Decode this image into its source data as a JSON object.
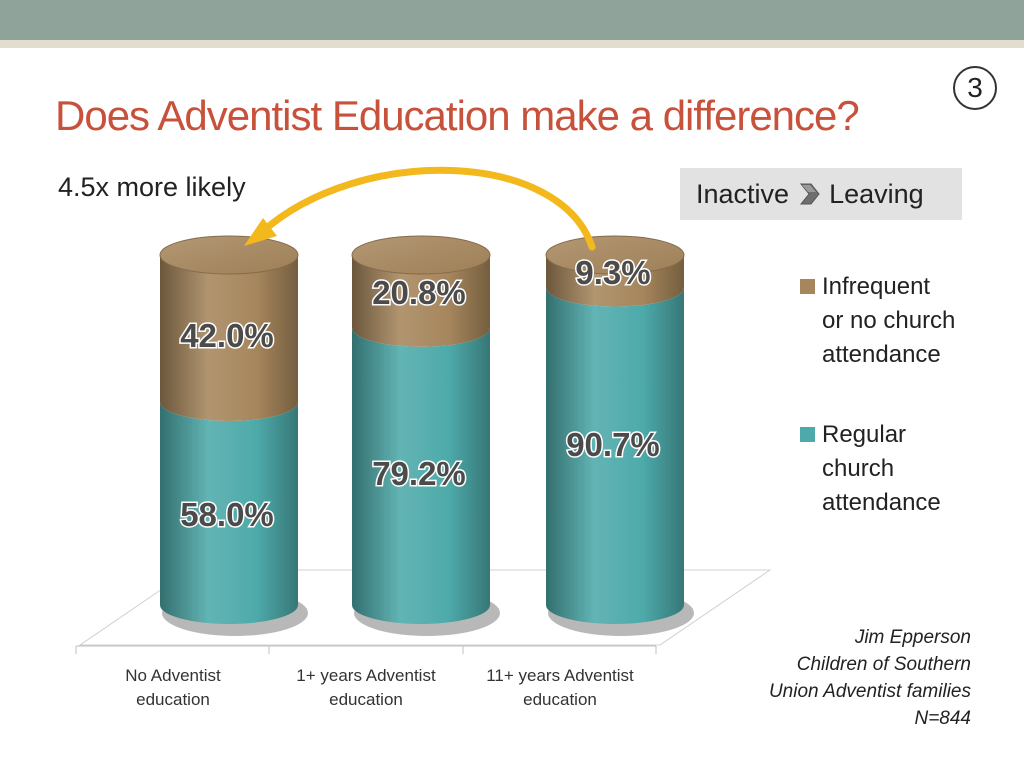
{
  "slide": {
    "title": "Does Adventist Education make a difference?",
    "number": "3",
    "subtitle": "4.5x more likely",
    "tag": {
      "left": "Inactive",
      "right": "Leaving"
    }
  },
  "source": {
    "lines": [
      "Jim Epperson",
      "Children of Southern",
      "Union Adventist families",
      "N=844"
    ]
  },
  "colors": {
    "title": "#c8513b",
    "regular": "#4eaaaa",
    "infrequent": "#a6865c",
    "arrow": "#f2b81c",
    "top_bar": "#8fa39a"
  },
  "chart_data": {
    "type": "bar",
    "stacked": true,
    "categories": [
      "No Adventist education",
      "1+ years Adventist education",
      "11+ years Adventist education"
    ],
    "category_lines": [
      [
        "No Adventist",
        "education"
      ],
      [
        "1+ years Adventist",
        "education"
      ],
      [
        "11+ years Adventist",
        "education"
      ]
    ],
    "series": [
      {
        "name": "Regular church attendance",
        "legend_lines": [
          "Regular",
          "church",
          "attendance"
        ],
        "values": [
          58.0,
          79.2,
          90.7
        ],
        "labels": [
          "58.0%",
          "79.2%",
          "90.7%"
        ],
        "color": "#4eaaaa"
      },
      {
        "name": "Infrequent or no church attendance",
        "legend_lines": [
          "Infrequent",
          "or no church",
          "attendance"
        ],
        "values": [
          42.0,
          20.8,
          9.3
        ],
        "labels": [
          "42.0%",
          "20.8%",
          "9.3%"
        ],
        "color": "#a6865c"
      }
    ],
    "ylim": [
      0,
      100
    ],
    "legend_position": "right",
    "grid": false
  }
}
